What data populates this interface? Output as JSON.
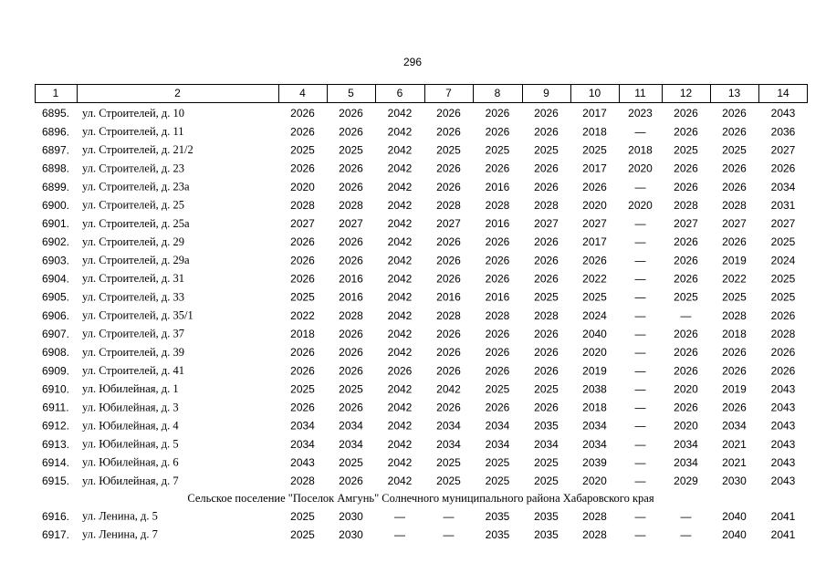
{
  "page_number": "296",
  "table": {
    "header": [
      "1",
      "2",
      "4",
      "5",
      "6",
      "7",
      "8",
      "9",
      "10",
      "11",
      "12",
      "13",
      "14"
    ],
    "rows": [
      [
        "6895.",
        "ул. Строителей, д. 10",
        "2026",
        "2026",
        "2042",
        "2026",
        "2026",
        "2026",
        "2017",
        "2023",
        "2026",
        "2026",
        "2043"
      ],
      [
        "6896.",
        "ул. Строителей, д. 11",
        "2026",
        "2026",
        "2042",
        "2026",
        "2026",
        "2026",
        "2018",
        "—",
        "2026",
        "2026",
        "2036"
      ],
      [
        "6897.",
        "ул. Строителей, д. 21/2",
        "2025",
        "2025",
        "2042",
        "2025",
        "2025",
        "2025",
        "2025",
        "2018",
        "2025",
        "2025",
        "2027"
      ],
      [
        "6898.",
        "ул. Строителей, д. 23",
        "2026",
        "2026",
        "2042",
        "2026",
        "2026",
        "2026",
        "2017",
        "2020",
        "2026",
        "2026",
        "2026"
      ],
      [
        "6899.",
        "ул. Строителей, д. 23а",
        "2020",
        "2026",
        "2042",
        "2026",
        "2016",
        "2026",
        "2026",
        "—",
        "2026",
        "2026",
        "2034"
      ],
      [
        "6900.",
        "ул. Строителей, д. 25",
        "2028",
        "2028",
        "2042",
        "2028",
        "2028",
        "2028",
        "2020",
        "2020",
        "2028",
        "2028",
        "2031"
      ],
      [
        "6901.",
        "ул. Строителей, д. 25а",
        "2027",
        "2027",
        "2042",
        "2027",
        "2016",
        "2027",
        "2027",
        "—",
        "2027",
        "2027",
        "2027"
      ],
      [
        "6902.",
        "ул. Строителей, д. 29",
        "2026",
        "2026",
        "2042",
        "2026",
        "2026",
        "2026",
        "2017",
        "—",
        "2026",
        "2026",
        "2025"
      ],
      [
        "6903.",
        "ул. Строителей, д. 29а",
        "2026",
        "2026",
        "2042",
        "2026",
        "2026",
        "2026",
        "2026",
        "—",
        "2026",
        "2019",
        "2024"
      ],
      [
        "6904.",
        "ул. Строителей, д. 31",
        "2026",
        "2016",
        "2042",
        "2026",
        "2026",
        "2026",
        "2022",
        "—",
        "2026",
        "2022",
        "2025"
      ],
      [
        "6905.",
        "ул. Строителей, д. 33",
        "2025",
        "2016",
        "2042",
        "2016",
        "2016",
        "2025",
        "2025",
        "—",
        "2025",
        "2025",
        "2025"
      ],
      [
        "6906.",
        "ул. Строителей, д. 35/1",
        "2022",
        "2028",
        "2042",
        "2028",
        "2028",
        "2028",
        "2024",
        "—",
        "—",
        "2028",
        "2026"
      ],
      [
        "6907.",
        "ул. Строителей, д. 37",
        "2018",
        "2026",
        "2042",
        "2026",
        "2026",
        "2026",
        "2040",
        "—",
        "2026",
        "2018",
        "2028"
      ],
      [
        "6908.",
        "ул. Строителей, д. 39",
        "2026",
        "2026",
        "2042",
        "2026",
        "2026",
        "2026",
        "2020",
        "—",
        "2026",
        "2026",
        "2026"
      ],
      [
        "6909.",
        "ул. Строителей, д. 41",
        "2026",
        "2026",
        "2026",
        "2026",
        "2026",
        "2026",
        "2019",
        "—",
        "2026",
        "2026",
        "2026"
      ],
      [
        "6910.",
        "ул. Юбилейная, д. 1",
        "2025",
        "2025",
        "2042",
        "2042",
        "2025",
        "2025",
        "2038",
        "—",
        "2020",
        "2019",
        "2043"
      ],
      [
        "6911.",
        "ул. Юбилейная, д. 3",
        "2026",
        "2026",
        "2042",
        "2026",
        "2026",
        "2026",
        "2018",
        "—",
        "2026",
        "2026",
        "2043"
      ],
      [
        "6912.",
        "ул. Юбилейная, д. 4",
        "2034",
        "2034",
        "2042",
        "2034",
        "2034",
        "2035",
        "2034",
        "—",
        "2020",
        "2034",
        "2043"
      ],
      [
        "6913.",
        "ул. Юбилейная, д. 5",
        "2034",
        "2034",
        "2042",
        "2034",
        "2034",
        "2034",
        "2034",
        "—",
        "2034",
        "2021",
        "2043"
      ],
      [
        "6914.",
        "ул. Юбилейная, д. 6",
        "2043",
        "2025",
        "2042",
        "2025",
        "2025",
        "2025",
        "2039",
        "—",
        "2034",
        "2021",
        "2043"
      ],
      [
        "6915.",
        "ул. Юбилейная, д. 7",
        "2028",
        "2026",
        "2042",
        "2025",
        "2025",
        "2025",
        "2020",
        "—",
        "2029",
        "2030",
        "2043"
      ]
    ],
    "section": "Сельское поселение \"Поселок Амгунь\" Солнечного муниципального района Хабаровского края",
    "rows_after": [
      [
        "6916.",
        "ул. Ленина, д. 5",
        "2025",
        "2030",
        "—",
        "—",
        "2035",
        "2035",
        "2028",
        "—",
        "—",
        "2040",
        "2041"
      ],
      [
        "6917.",
        "ул. Ленина, д. 7",
        "2025",
        "2030",
        "—",
        "—",
        "2035",
        "2035",
        "2028",
        "—",
        "—",
        "2040",
        "2041"
      ]
    ]
  }
}
